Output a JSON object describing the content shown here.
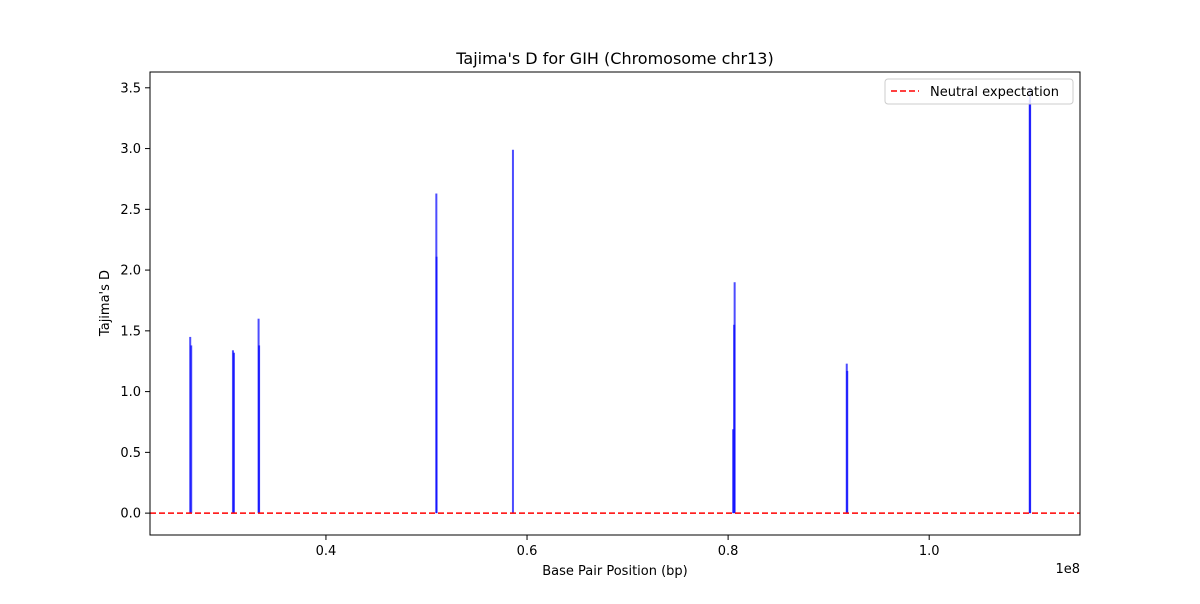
{
  "chart_data": {
    "type": "bar",
    "title": "Tajima's D for GIH (Chromosome chr13)",
    "xlabel": "Base Pair Position (bp)",
    "ylabel": "Tajima's D",
    "x_offset_label": "1e8",
    "x_scale_factor": 100000000,
    "xlim": [
      22500000,
      115000000
    ],
    "ylim": [
      -0.18,
      3.63
    ],
    "x_ticks": [
      {
        "value": 40000000,
        "label": "0.4"
      },
      {
        "value": 60000000,
        "label": "0.6"
      },
      {
        "value": 80000000,
        "label": "0.8"
      },
      {
        "value": 100000000,
        "label": "1.0"
      }
    ],
    "y_ticks": [
      {
        "value": 0.0,
        "label": "0.0"
      },
      {
        "value": 0.5,
        "label": "0.5"
      },
      {
        "value": 1.0,
        "label": "1.0"
      },
      {
        "value": 1.5,
        "label": "1.5"
      },
      {
        "value": 2.0,
        "label": "2.0"
      },
      {
        "value": 2.5,
        "label": "2.5"
      },
      {
        "value": 3.0,
        "label": "3.0"
      },
      {
        "value": 3.5,
        "label": "3.5"
      }
    ],
    "bar_color": "#0000ff",
    "bar_alpha": 0.7,
    "neutral_line": {
      "value": 0.0,
      "color": "#ff0000",
      "style": "dashed"
    },
    "legend": {
      "position": "upper right",
      "entries": [
        "Neutral expectation"
      ]
    },
    "grid": false,
    "points": [
      {
        "x": 26500000,
        "y": 1.45
      },
      {
        "x": 26600000,
        "y": 1.38
      },
      {
        "x": 30750000,
        "y": 1.34
      },
      {
        "x": 30850000,
        "y": 1.32
      },
      {
        "x": 33300000,
        "y": 1.6
      },
      {
        "x": 33350000,
        "y": 1.38
      },
      {
        "x": 50980000,
        "y": 2.63
      },
      {
        "x": 51000000,
        "y": 2.11
      },
      {
        "x": 58600000,
        "y": 2.99
      },
      {
        "x": 80500000,
        "y": 0.69
      },
      {
        "x": 80600000,
        "y": 1.55
      },
      {
        "x": 80650000,
        "y": 1.9
      },
      {
        "x": 91800000,
        "y": 1.23
      },
      {
        "x": 91850000,
        "y": 1.17
      },
      {
        "x": 110000000,
        "y": 3.4
      },
      {
        "x": 110040000,
        "y": 3.5
      }
    ]
  }
}
